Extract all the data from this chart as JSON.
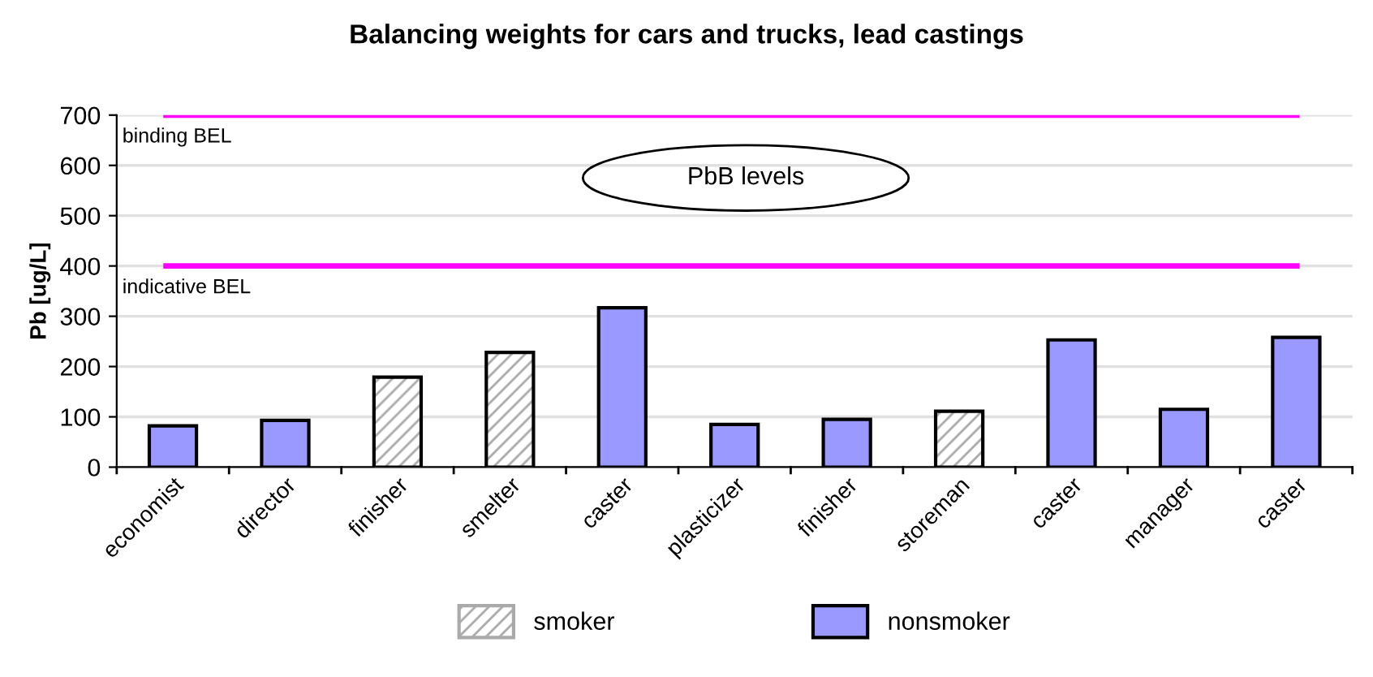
{
  "chart_data": {
    "type": "bar",
    "title": "Balancing weights for cars and trucks, lead castings",
    "ylabel": "Pb [ug/L]",
    "categories": [
      "economist",
      "director",
      "finisher",
      "smelter",
      "caster",
      "plasticizer",
      "finisher",
      "storeman",
      "caster",
      "manager",
      "caster"
    ],
    "series": [
      {
        "name": "smoker",
        "color": "#ffffff",
        "values": [
          null,
          null,
          179,
          228,
          null,
          null,
          null,
          111,
          null,
          null,
          null
        ]
      },
      {
        "name": "nonsmoker",
        "color": "#9999ff",
        "values": [
          82,
          93,
          null,
          null,
          317,
          85,
          95,
          null,
          253,
          115,
          258
        ]
      }
    ],
    "ylim": [
      0,
      700
    ],
    "yticks": [
      0,
      100,
      200,
      300,
      400,
      500,
      600,
      700
    ],
    "grid": "y",
    "legend": "bottom",
    "ref_lines": [
      {
        "axis": "y",
        "value": 700,
        "label": "binding BEL",
        "color": "#ff00ff"
      },
      {
        "axis": "y",
        "value": 400,
        "label": "indicative BEL",
        "color": "#ff00ff"
      }
    ],
    "annotations": [
      "PbB levels"
    ]
  }
}
